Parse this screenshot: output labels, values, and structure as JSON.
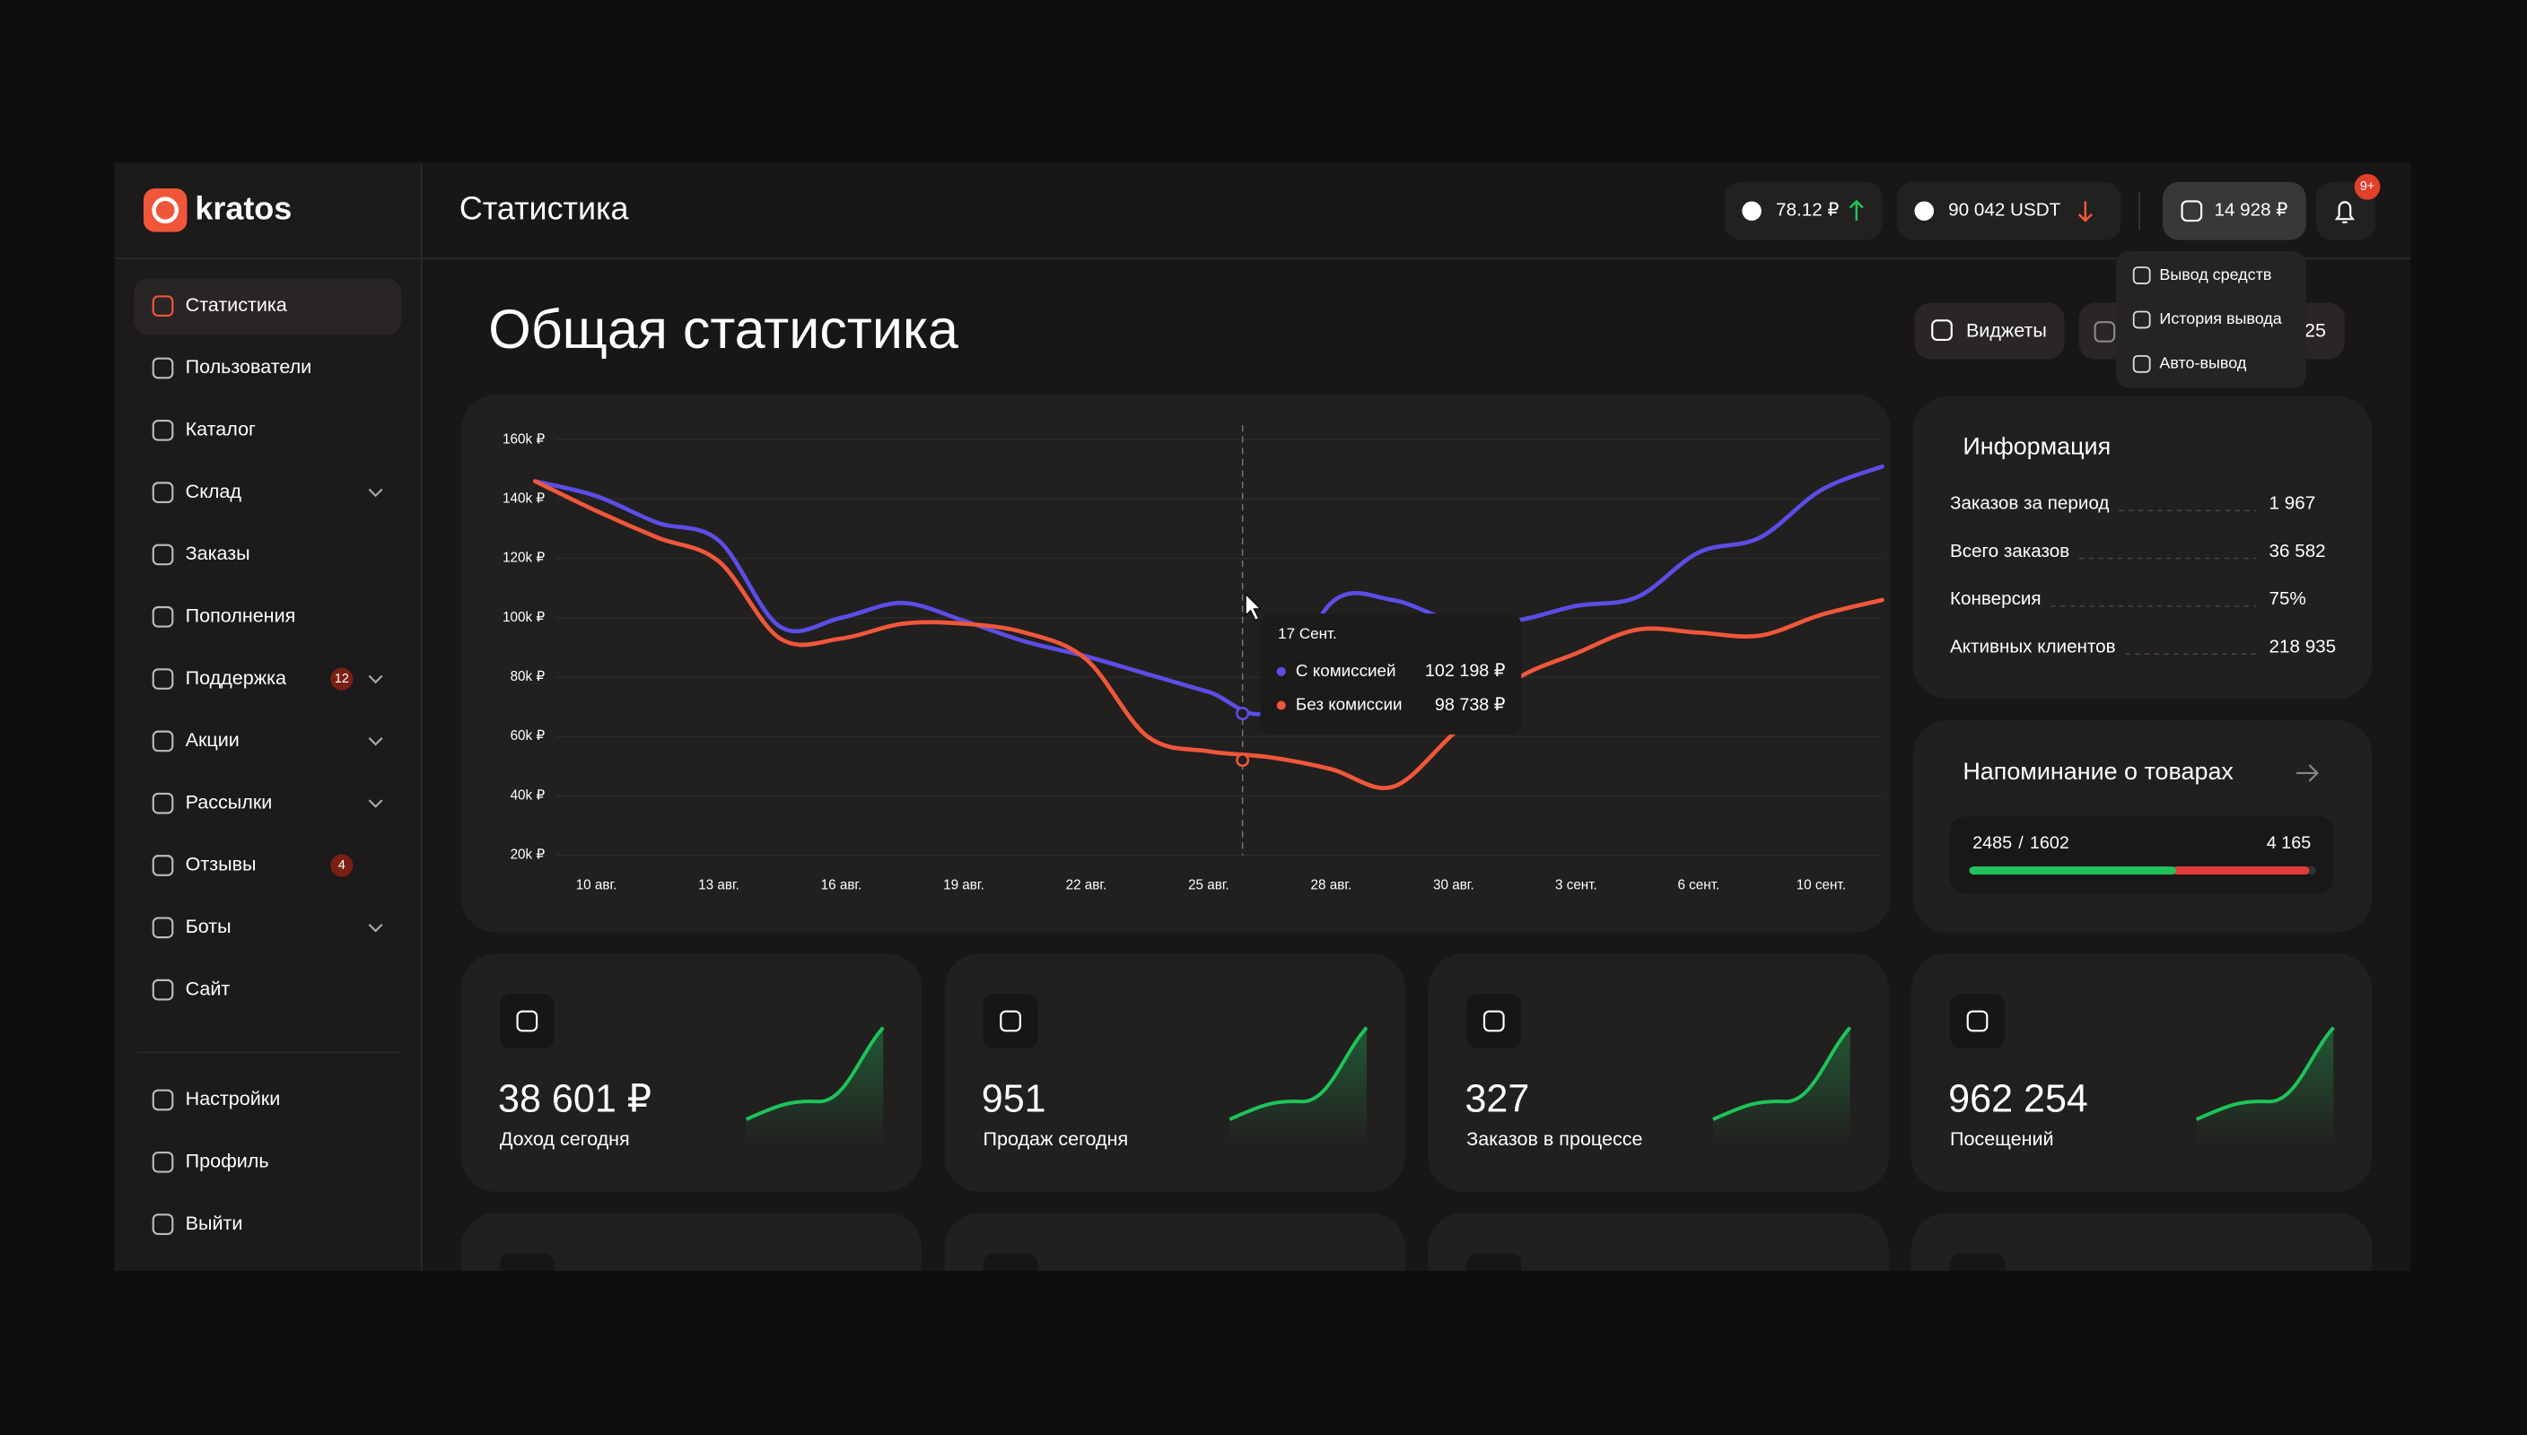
{
  "sidebar": {
    "brand": "kratos",
    "menu": [
      {
        "label": "Статистика",
        "active": true
      },
      {
        "label": "Пользователи"
      },
      {
        "label": "Каталог"
      },
      {
        "label": "Склад",
        "expandable": true
      },
      {
        "label": "Заказы"
      },
      {
        "label": "Пополнения"
      },
      {
        "label": "Поддержка",
        "badge": "12",
        "expandable": true
      },
      {
        "label": "Акции",
        "expandable": true
      },
      {
        "label": "Рассылки",
        "expandable": true
      },
      {
        "label": "Отзывы",
        "badge": "4"
      },
      {
        "label": "Боты",
        "expandable": true
      },
      {
        "label": "Сайт"
      }
    ],
    "bottom": [
      {
        "label": "Настройки"
      },
      {
        "label": "Профиль"
      },
      {
        "label": "Выйти"
      }
    ]
  },
  "header": {
    "title": "Статистика",
    "rates": [
      {
        "text": "78.12 ₽",
        "trend": "up"
      },
      {
        "text": "90 042 USDT",
        "trend": "down"
      }
    ],
    "balance": "14 928 ₽",
    "notifications": "9+",
    "dropdown": [
      "Вывод средств",
      "История вывода",
      "Авто-вывод"
    ]
  },
  "page": {
    "title": "Общая статистика",
    "widgets": "Виджеты",
    "date": "25"
  },
  "chart_data": {
    "type": "line",
    "categories": [
      null,
      "10 авг.",
      null,
      "13 авг.",
      null,
      "16 авг.",
      null,
      "19 авг.",
      null,
      "22 авг.",
      null,
      "25 авг.",
      null,
      "28 авг.",
      null,
      "30 авг.",
      null,
      "3 сент.",
      null,
      "6 сент.",
      null,
      "10 сент.",
      null
    ],
    "series": [
      {
        "name": "С комиссией",
        "color": "#5b4ee6",
        "values": [
          146000,
          141000,
          132000,
          126000,
          97000,
          100000,
          105000,
          99000,
          92000,
          87000,
          81000,
          75000,
          69000,
          105000,
          106000,
          99000,
          99000,
          104000,
          107000,
          122000,
          127000,
          143000,
          151000
        ]
      },
      {
        "name": "Без комиссии",
        "color": "#f0573a",
        "values": [
          146000,
          136000,
          127000,
          119000,
          93000,
          93000,
          98000,
          98000,
          95000,
          86000,
          60000,
          55000,
          53000,
          49000,
          43000,
          61000,
          79000,
          88000,
          96000,
          95000,
          94000,
          101000,
          106000
        ]
      }
    ],
    "ylim": [
      20000,
      160000
    ],
    "yticks": [
      {
        "value": 20000,
        "label": "20k ₽"
      },
      {
        "value": 40000,
        "label": "40k ₽"
      },
      {
        "value": 60000,
        "label": "60k ₽"
      },
      {
        "value": 80000,
        "label": "80k ₽"
      },
      {
        "value": 100000,
        "label": "100k ₽"
      },
      {
        "value": 120000,
        "label": "120k ₽"
      },
      {
        "value": 140000,
        "label": "140k ₽"
      },
      {
        "value": 160000,
        "label": "160k ₽"
      }
    ],
    "grid": true,
    "tooltip": {
      "title": "17 Сент.",
      "values": [
        "102 198 ₽",
        "98 738 ₽"
      ]
    }
  },
  "info": {
    "title": "Информация",
    "rows": [
      {
        "label": "Заказов за период",
        "value": "1 967"
      },
      {
        "label": "Всего заказов",
        "value": "36 582"
      },
      {
        "label": "Конверсия",
        "value": "75%",
        "color": "#f0573a"
      },
      {
        "label": "Активных клиентов",
        "value": "218 935"
      }
    ]
  },
  "reminder": {
    "title": "Напоминание о товарах",
    "in_stock": 2485,
    "separator": "/",
    "low": 1602,
    "total": {
      "value": 4165,
      "label": "4 165"
    }
  },
  "stats": [
    {
      "value": "38 601 ₽",
      "label": "Доход сегодня"
    },
    {
      "value": "951",
      "label": "Продаж сегодня"
    },
    {
      "value": "327",
      "label": "Заказов в процессе"
    },
    {
      "value": "962 254",
      "label": "Посещений"
    }
  ]
}
